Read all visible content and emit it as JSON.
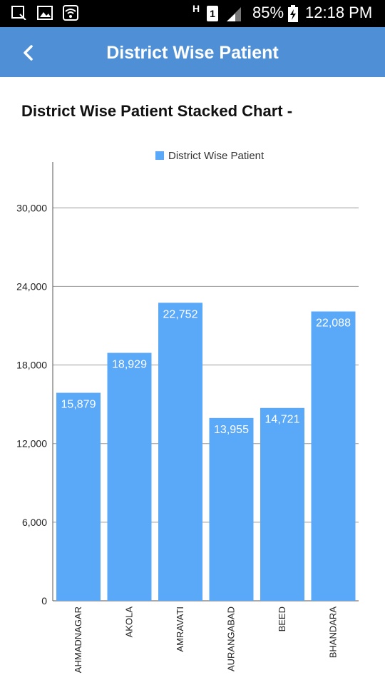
{
  "status_bar": {
    "battery": "85%",
    "time": "12:18 PM",
    "network_letter": "H",
    "sim_slot": "1",
    "icons": [
      "screenshot-icon",
      "gallery-icon",
      "wifi-icon",
      "network-h-icon",
      "sim-1-icon",
      "signal-icon",
      "battery-charging-icon"
    ]
  },
  "app_bar": {
    "title": "District Wise Patient",
    "back_icon": "chevron-left-icon",
    "color": "#4f8fd6"
  },
  "heading": "District Wise Patient Stacked Chart -",
  "chart_data": {
    "type": "bar",
    "categories": [
      "AHMADNAGAR",
      "AKOLA",
      "AMRAVATI",
      "AURANGABAD",
      "BEED",
      "BHANDARA"
    ],
    "series": [
      {
        "name": "District Wise Patient",
        "values": [
          15879,
          18929,
          22752,
          13955,
          14721,
          22088
        ],
        "color": "#5aa8f8"
      }
    ],
    "value_labels": [
      "15,879",
      "18,929",
      "22,752",
      "13,955",
      "14,721",
      "22,088"
    ],
    "yticks": [
      0,
      6000,
      12000,
      18000,
      24000,
      30000
    ],
    "ytick_labels": [
      "0",
      "6,000",
      "12,000",
      "18,000",
      "24,000",
      "30,000"
    ],
    "ylim": [
      0,
      33500
    ],
    "xlabel": "",
    "ylabel": "",
    "grid": true,
    "legend_position": "top-center"
  }
}
